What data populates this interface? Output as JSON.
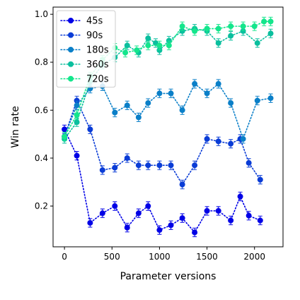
{
  "chart_data": {
    "type": "line",
    "title": "",
    "xlabel": "Parameter versions",
    "ylabel": "Win rate",
    "xlim": [
      -120,
      2300
    ],
    "ylim": [
      0.03,
      1.03
    ],
    "xticks": [
      0,
      500,
      1000,
      1500,
      2000
    ],
    "yticks": [
      0.2,
      0.4,
      0.6,
      0.8,
      1.0
    ],
    "xtick_labels": [
      "0",
      "500",
      "1000",
      "1500",
      "2000"
    ],
    "ytick_labels": [
      "0.2",
      "0.4",
      "0.6",
      "0.8",
      "1.0"
    ],
    "grid": false,
    "legend_position": "top-left",
    "line_style": "dotted",
    "marker": "circle",
    "error_bars": true,
    "series": [
      {
        "name": "45s",
        "color": "#0000e6",
        "x": [
          0,
          130,
          270,
          400,
          530,
          660,
          780,
          880,
          1000,
          1120,
          1240,
          1370,
          1500,
          1620,
          1750,
          1850,
          1940,
          2060
        ],
        "y": [
          0.52,
          0.41,
          0.13,
          0.17,
          0.2,
          0.11,
          0.17,
          0.2,
          0.1,
          0.12,
          0.15,
          0.09,
          0.18,
          0.18,
          0.14,
          0.24,
          0.16,
          0.14
        ]
      },
      {
        "name": "90s",
        "color": "#0a3cd6",
        "x": [
          0,
          130,
          270,
          400,
          530,
          660,
          780,
          880,
          1000,
          1120,
          1240,
          1370,
          1500,
          1620,
          1750,
          1850,
          1940,
          2060
        ],
        "y": [
          0.49,
          0.64,
          0.52,
          0.35,
          0.36,
          0.4,
          0.37,
          0.37,
          0.37,
          0.37,
          0.29,
          0.37,
          0.48,
          0.47,
          0.46,
          0.48,
          0.38,
          0.31
        ]
      },
      {
        "name": "180s",
        "color": "#0a7fc8",
        "x": [
          0,
          130,
          270,
          400,
          530,
          660,
          780,
          880,
          1000,
          1120,
          1240,
          1370,
          1500,
          1620,
          1750,
          1880,
          2030,
          2170
        ],
        "y": [
          0.49,
          0.62,
          0.69,
          0.7,
          0.59,
          0.62,
          0.57,
          0.63,
          0.67,
          0.67,
          0.6,
          0.71,
          0.67,
          0.71,
          0.63,
          0.48,
          0.64,
          0.65
        ]
      },
      {
        "name": "360s",
        "color": "#0abf9e",
        "x": [
          0,
          130,
          270,
          400,
          530,
          660,
          780,
          880,
          960,
          1000,
          1100,
          1240,
          1370,
          1500,
          1620,
          1750,
          1880,
          2030,
          2170
        ],
        "y": [
          0.48,
          0.55,
          0.72,
          0.79,
          0.82,
          0.87,
          0.84,
          0.9,
          0.88,
          0.85,
          0.89,
          0.93,
          0.94,
          0.93,
          0.88,
          0.91,
          0.93,
          0.88,
          0.92
        ]
      },
      {
        "name": "720s",
        "color": "#14e68c",
        "x": [
          0,
          130,
          270,
          400,
          530,
          640,
          760,
          880,
          1000,
          1100,
          1240,
          1370,
          1500,
          1620,
          1750,
          1880,
          2000,
          2100,
          2170
        ],
        "y": [
          0.49,
          0.58,
          0.74,
          0.81,
          0.86,
          0.84,
          0.85,
          0.87,
          0.87,
          0.87,
          0.95,
          0.93,
          0.94,
          0.94,
          0.95,
          0.95,
          0.95,
          0.97,
          0.97
        ]
      }
    ]
  }
}
